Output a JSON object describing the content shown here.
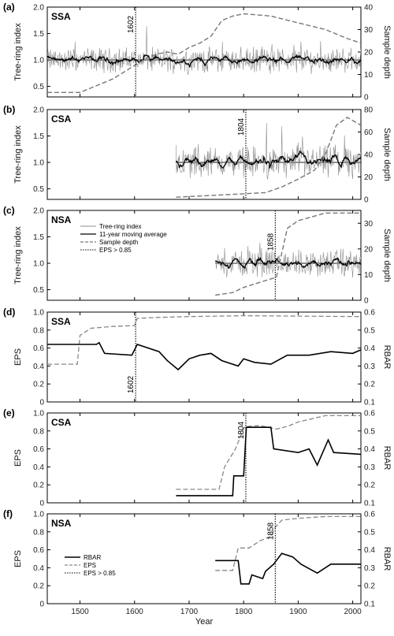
{
  "chart_data": {
    "type": "line",
    "xlabel": "Year",
    "xlim": [
      1440,
      2015
    ],
    "xticks": [
      1500,
      1600,
      1700,
      1800,
      1900,
      2000
    ],
    "colors": {
      "index": "#8c8c8c",
      "smooth": "#000000",
      "depth": "#777777",
      "eps": "#888888",
      "rbar": "#000000"
    },
    "panels": [
      {
        "label": "(a)",
        "region": "SSA",
        "kind": "chronology",
        "ylabel": "Tree-ring index",
        "ylim": [
          0.3,
          2.0
        ],
        "yticks": [
          "0.5",
          "1.0",
          "1.5",
          "2.0"
        ],
        "y2label": "Sample depth",
        "y2lim": [
          0,
          40
        ],
        "y2ticks": [
          "0",
          "10",
          "20",
          "30",
          "40"
        ],
        "eps_year": 1602,
        "eps_label": "1602",
        "start": 1440,
        "sample_depth": [
          [
            1440,
            2
          ],
          [
            1500,
            2
          ],
          [
            1520,
            4
          ],
          [
            1540,
            6
          ],
          [
            1560,
            8
          ],
          [
            1580,
            11
          ],
          [
            1600,
            14
          ],
          [
            1620,
            17
          ],
          [
            1640,
            19
          ],
          [
            1660,
            20
          ],
          [
            1680,
            19
          ],
          [
            1700,
            22
          ],
          [
            1720,
            24
          ],
          [
            1740,
            27
          ],
          [
            1760,
            34
          ],
          [
            1780,
            36
          ],
          [
            1800,
            37
          ],
          [
            1850,
            36
          ],
          [
            1900,
            33
          ],
          [
            1950,
            30
          ],
          [
            1990,
            26
          ],
          [
            2015,
            24
          ]
        ],
        "index_noise": 0.17
      },
      {
        "label": "(b)",
        "region": "CSA",
        "kind": "chronology",
        "ylabel": "Tree-ring index",
        "ylim": [
          0.3,
          2.0
        ],
        "yticks": [
          "0.5",
          "1.0",
          "1.5",
          "2.0"
        ],
        "y2label": "Sample depth",
        "y2lim": [
          0,
          80
        ],
        "y2ticks": [
          "0",
          "20",
          "40",
          "60",
          "80"
        ],
        "eps_year": 1804,
        "eps_label": "1804",
        "start": 1676,
        "sample_depth": [
          [
            1676,
            2
          ],
          [
            1720,
            3
          ],
          [
            1760,
            4
          ],
          [
            1800,
            5
          ],
          [
            1840,
            6
          ],
          [
            1870,
            11
          ],
          [
            1900,
            18
          ],
          [
            1930,
            26
          ],
          [
            1950,
            40
          ],
          [
            1970,
            66
          ],
          [
            1990,
            73
          ],
          [
            2015,
            66
          ]
        ],
        "index_noise": 0.22
      },
      {
        "label": "(c)",
        "region": "NSA",
        "kind": "chronology",
        "ylabel": "Tree-ring index",
        "ylim": [
          0.3,
          2.0
        ],
        "yticks": [
          "0.5",
          "1.0",
          "1.5",
          "2.0"
        ],
        "y2label": "Sample depth",
        "y2lim": [
          0,
          35
        ],
        "y2ticks": [
          "0",
          "10",
          "20",
          "30"
        ],
        "eps_year": 1858,
        "eps_label": "1858",
        "start": 1748,
        "sample_depth": [
          [
            1748,
            2
          ],
          [
            1780,
            3
          ],
          [
            1800,
            5
          ],
          [
            1830,
            7
          ],
          [
            1860,
            9
          ],
          [
            1880,
            28
          ],
          [
            1900,
            31
          ],
          [
            1950,
            34
          ],
          [
            2015,
            34
          ]
        ],
        "index_noise": 0.19,
        "legend": [
          "Tree-ring index",
          "11-year moving average",
          "Sample depth",
          "EPS > 0.85"
        ]
      },
      {
        "label": "(d)",
        "region": "SSA",
        "kind": "eps",
        "ylabel": "EPS",
        "ylim": [
          0,
          1.0
        ],
        "yticks": [
          "0",
          "0.2",
          "0.4",
          "0.6",
          "0.8",
          "1.0"
        ],
        "y2label": "RBAR",
        "y2lim": [
          0.1,
          0.6
        ],
        "y2ticks": [
          "0.1",
          "0.2",
          "0.3",
          "0.4",
          "0.5",
          "0.6"
        ],
        "eps_year": 1602,
        "eps_label": "1602",
        "eps": [
          [
            1440,
            0.42
          ],
          [
            1470,
            0.42
          ],
          [
            1495,
            0.42
          ],
          [
            1500,
            0.74
          ],
          [
            1520,
            0.82
          ],
          [
            1560,
            0.84
          ],
          [
            1600,
            0.85
          ],
          [
            1605,
            0.93
          ],
          [
            1640,
            0.94
          ],
          [
            1700,
            0.95
          ],
          [
            1800,
            0.96
          ],
          [
            2015,
            0.95
          ]
        ],
        "rbar": [
          [
            1440,
            0.42
          ],
          [
            1530,
            0.42
          ],
          [
            1535,
            0.43
          ],
          [
            1545,
            0.37
          ],
          [
            1595,
            0.36
          ],
          [
            1605,
            0.42
          ],
          [
            1645,
            0.38
          ],
          [
            1660,
            0.33
          ],
          [
            1680,
            0.28
          ],
          [
            1700,
            0.34
          ],
          [
            1720,
            0.36
          ],
          [
            1740,
            0.37
          ],
          [
            1760,
            0.33
          ],
          [
            1790,
            0.3
          ],
          [
            1800,
            0.34
          ],
          [
            1820,
            0.32
          ],
          [
            1850,
            0.31
          ],
          [
            1880,
            0.36
          ],
          [
            1920,
            0.36
          ],
          [
            1960,
            0.38
          ],
          [
            2000,
            0.37
          ],
          [
            2015,
            0.39
          ]
        ]
      },
      {
        "label": "(e)",
        "region": "CSA",
        "kind": "eps",
        "ylabel": "EPS",
        "ylim": [
          0,
          1.0
        ],
        "yticks": [
          "0",
          "0.2",
          "0.4",
          "0.6",
          "0.8",
          "1.0"
        ],
        "y2label": "RBAR",
        "y2lim": [
          0.1,
          0.6
        ],
        "y2ticks": [
          "0.1",
          "0.2",
          "0.3",
          "0.4",
          "0.5",
          "0.6"
        ],
        "eps_year": 1804,
        "eps_label": "1804",
        "eps": [
          [
            1676,
            0.15
          ],
          [
            1755,
            0.15
          ],
          [
            1765,
            0.4
          ],
          [
            1785,
            0.6
          ],
          [
            1800,
            0.83
          ],
          [
            1805,
            0.85
          ],
          [
            1830,
            0.86
          ],
          [
            1860,
            0.82
          ],
          [
            1880,
            0.85
          ],
          [
            1900,
            0.9
          ],
          [
            1950,
            0.97
          ],
          [
            2015,
            0.97
          ]
        ],
        "rbar": [
          [
            1676,
            0.14
          ],
          [
            1780,
            0.14
          ],
          [
            1782,
            0.25
          ],
          [
            1800,
            0.25
          ],
          [
            1805,
            0.52
          ],
          [
            1850,
            0.52
          ],
          [
            1855,
            0.4
          ],
          [
            1900,
            0.38
          ],
          [
            1920,
            0.4
          ],
          [
            1935,
            0.31
          ],
          [
            1945,
            0.38
          ],
          [
            1955,
            0.45
          ],
          [
            1965,
            0.38
          ],
          [
            2015,
            0.37
          ]
        ]
      },
      {
        "label": "(f)",
        "region": "NSA",
        "kind": "eps",
        "ylabel": "EPS",
        "ylim": [
          0,
          1.0
        ],
        "yticks": [
          "0",
          "0.2",
          "0.4",
          "0.6",
          "0.8",
          "1.0"
        ],
        "y2label": "RBAR",
        "y2lim": [
          0.1,
          0.6
        ],
        "y2ticks": [
          "0.1",
          "0.2",
          "0.3",
          "0.4",
          "0.5",
          "0.6"
        ],
        "eps_year": 1858,
        "eps_label": "1858",
        "eps": [
          [
            1748,
            0.37
          ],
          [
            1780,
            0.37
          ],
          [
            1790,
            0.62
          ],
          [
            1810,
            0.62
          ],
          [
            1830,
            0.7
          ],
          [
            1850,
            0.75
          ],
          [
            1858,
            0.85
          ],
          [
            1870,
            0.93
          ],
          [
            1900,
            0.95
          ],
          [
            1950,
            0.97
          ],
          [
            2015,
            0.97
          ]
        ],
        "rbar": [
          [
            1748,
            0.34
          ],
          [
            1790,
            0.34
          ],
          [
            1795,
            0.21
          ],
          [
            1810,
            0.21
          ],
          [
            1815,
            0.26
          ],
          [
            1835,
            0.24
          ],
          [
            1840,
            0.28
          ],
          [
            1855,
            0.32
          ],
          [
            1870,
            0.38
          ],
          [
            1890,
            0.36
          ],
          [
            1905,
            0.32
          ],
          [
            1935,
            0.27
          ],
          [
            1960,
            0.32
          ],
          [
            2015,
            0.32
          ]
        ],
        "legend": [
          "RBAR",
          "EPS",
          "EPS > 0.85"
        ]
      }
    ]
  }
}
